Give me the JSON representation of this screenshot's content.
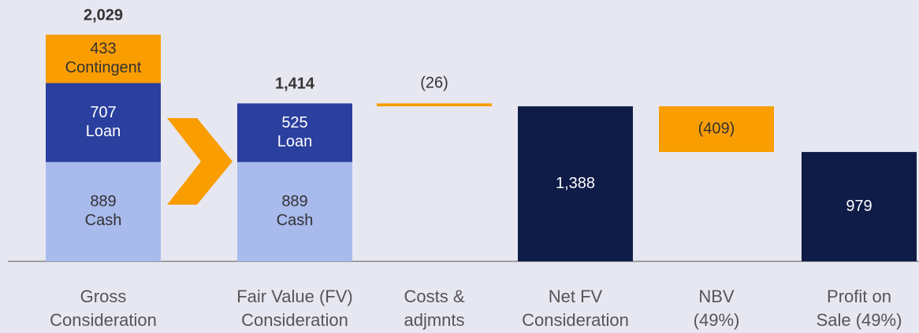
{
  "chart_data": {
    "type": "waterfall",
    "categories": [
      "Gross Consideration",
      "Fair Value (FV) Consideration",
      "Costs & adjmnts",
      "Net FV Consideration",
      "NBV (49%)",
      "Profit on Sale (49%)"
    ],
    "stack_series": [
      {
        "name": "Cash",
        "color": "#a9baed",
        "values": [
          889,
          889,
          null,
          null,
          null,
          null
        ]
      },
      {
        "name": "Loan",
        "color": "#2b3f9f",
        "values": [
          707,
          525,
          null,
          null,
          null,
          null
        ]
      },
      {
        "name": "Contingent",
        "color": "#f99d00",
        "values": [
          433,
          null,
          null,
          null,
          null,
          null
        ]
      }
    ],
    "stack_totals": [
      2029,
      1414,
      null,
      null,
      null,
      null
    ],
    "stack_total_labels": [
      "2,029",
      "1,414",
      null,
      null,
      null,
      null
    ],
    "changes": {
      "color": "#f99d00",
      "values": [
        null,
        null,
        -26,
        null,
        -409,
        null
      ],
      "value_labels": [
        null,
        null,
        "(26)",
        null,
        "(409)",
        null
      ]
    },
    "totals": {
      "color": "#0f1c47",
      "values": [
        null,
        null,
        null,
        1388,
        null,
        979
      ],
      "value_labels": [
        null,
        null,
        null,
        "1,388",
        null,
        "979"
      ]
    },
    "ylim": [
      0,
      2100
    ]
  }
}
